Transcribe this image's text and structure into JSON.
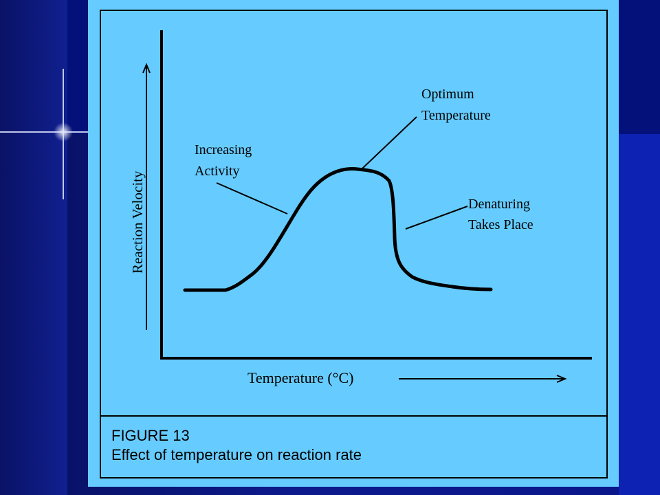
{
  "figure": {
    "figure_label": "FIGURE 13",
    "caption": "Effect of temperature on reaction rate",
    "x_axis_label": "Temperature (°C)",
    "y_axis_label": "Reaction Velocity",
    "annotations": {
      "increasing_activity": [
        "Increasing",
        "Activity"
      ],
      "optimum_temperature": [
        "Optimum",
        "Temperature"
      ],
      "denaturing": [
        "Denaturing",
        "Takes Place"
      ]
    }
  },
  "colors": {
    "figure_background": "#66ccff",
    "slide_background": "#0b1470",
    "ink": "#000000"
  },
  "icons": {
    "sparkle": "sparkle-icon",
    "x_arrow": "arrow-right-icon",
    "y_arrow": "arrow-up-icon"
  }
}
